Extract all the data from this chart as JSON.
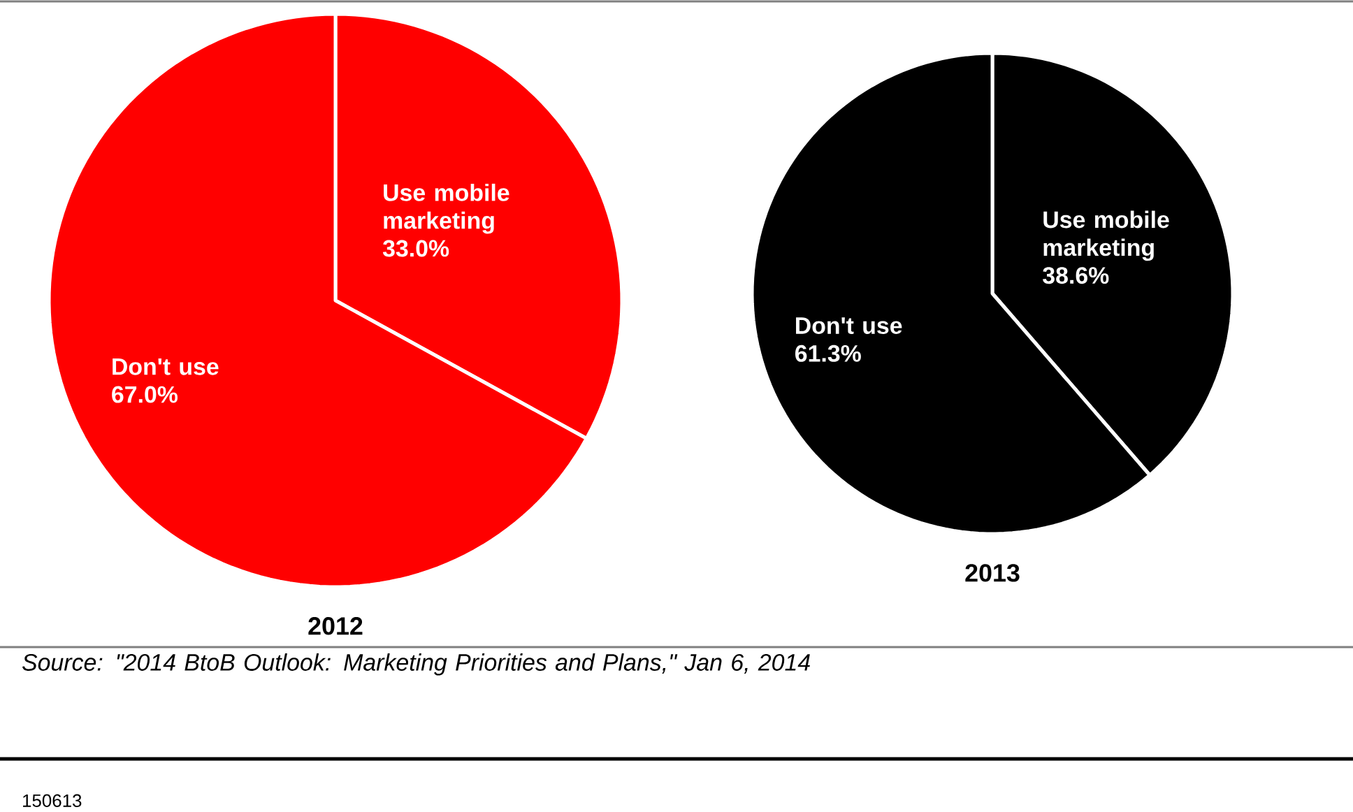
{
  "chart_data": [
    {
      "type": "pie",
      "title": "2012",
      "categories": [
        "Use mobile marketing",
        "Don't use"
      ],
      "values": [
        33.0,
        67.0
      ],
      "value_labels": [
        "33.0%",
        "67.0%"
      ],
      "colors": [
        "#ff0000",
        "#ff0000"
      ],
      "annotations": [
        "Source: \"2014 BtoB Outlook: Marketing Priorities and Plans,\" Jan 6, 2014",
        "150613"
      ]
    },
    {
      "type": "pie",
      "title": "2013",
      "categories": [
        "Use mobile marketing",
        "Don't use"
      ],
      "values": [
        38.6,
        61.3
      ],
      "value_labels": [
        "38.6%",
        "61.3%"
      ],
      "colors": [
        "#000000",
        "#000000"
      ]
    }
  ]
}
